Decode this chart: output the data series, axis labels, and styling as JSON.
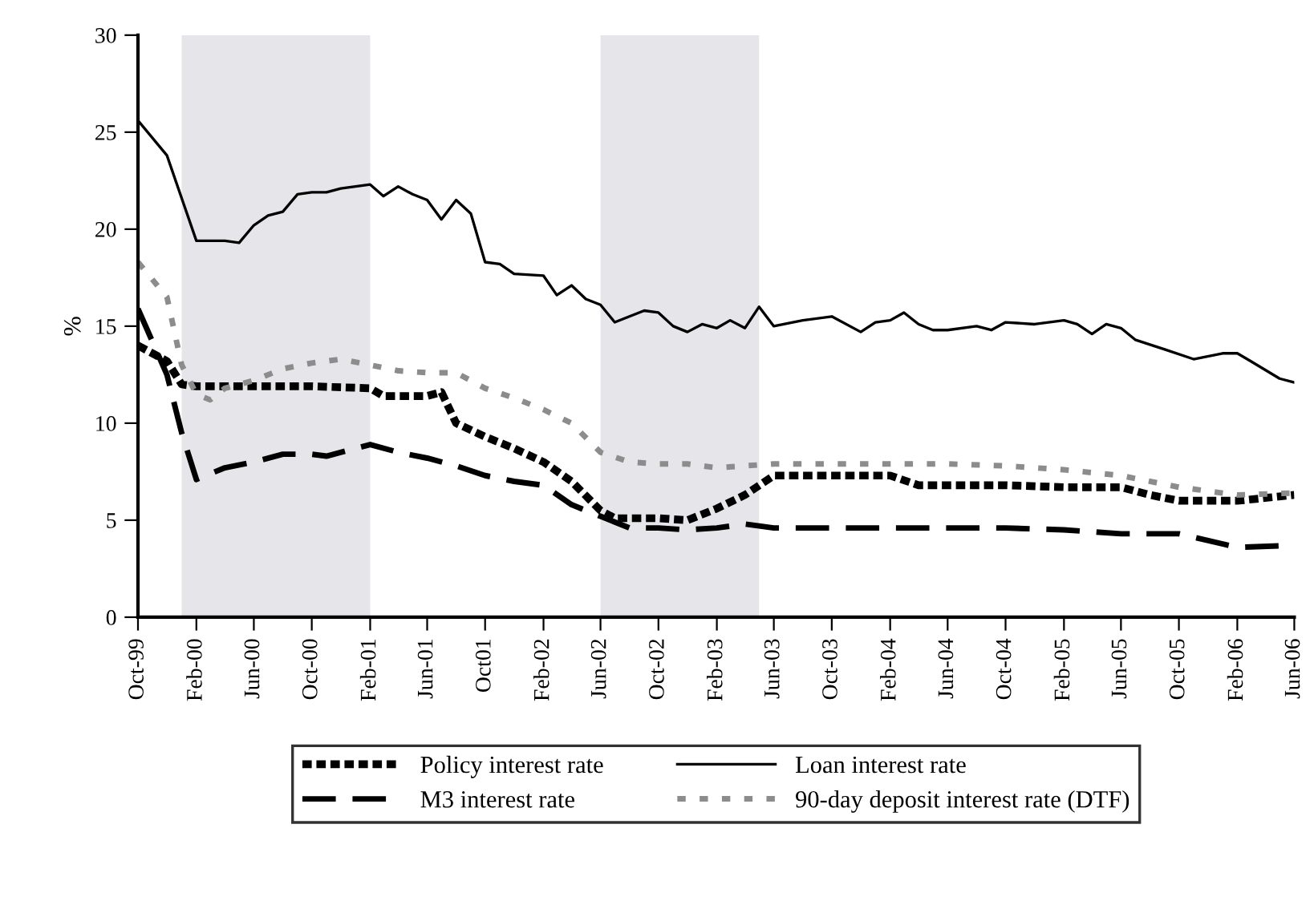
{
  "chart_data": {
    "type": "line",
    "ylabel": "%",
    "ylim": [
      0,
      30
    ],
    "yticks": [
      0,
      5,
      10,
      15,
      20,
      25,
      30
    ],
    "xlim": [
      "1999-10",
      "2006-06"
    ],
    "xticks": [
      {
        "value": "1999-10",
        "label": "Oct-99"
      },
      {
        "value": "2000-02",
        "label": "Feb-00"
      },
      {
        "value": "2000-06",
        "label": "Jun-00"
      },
      {
        "value": "2000-10",
        "label": "Oct-00"
      },
      {
        "value": "2001-02",
        "label": "Feb-01"
      },
      {
        "value": "2001-06",
        "label": "Jun-01"
      },
      {
        "value": "2001-10",
        "label": "Oct01"
      },
      {
        "value": "2002-02",
        "label": "Feb-02"
      },
      {
        "value": "2002-06",
        "label": "Jun-02"
      },
      {
        "value": "2002-10",
        "label": "Oct-02"
      },
      {
        "value": "2003-02",
        "label": "Feb-03"
      },
      {
        "value": "2003-06",
        "label": "Jun-03"
      },
      {
        "value": "2003-10",
        "label": "Oct-03"
      },
      {
        "value": "2004-02",
        "label": "Feb-04"
      },
      {
        "value": "2004-06",
        "label": "Jun-04"
      },
      {
        "value": "2004-10",
        "label": "Oct-04"
      },
      {
        "value": "2005-02",
        "label": "Feb-05"
      },
      {
        "value": "2005-06",
        "label": "Jun-05"
      },
      {
        "value": "2005-10",
        "label": "Oct-05"
      },
      {
        "value": "2006-02",
        "label": "Feb-06"
      },
      {
        "value": "2006-06",
        "label": "Jun-06"
      }
    ],
    "grid": false,
    "legend": "bottom",
    "bands": [
      {
        "axis": "x",
        "from": "2000-01",
        "to": "2001-02",
        "color": "#e6e6ea"
      },
      {
        "axis": "x",
        "from": "2002-06",
        "to": "2003-05",
        "color": "#e6e6ea"
      }
    ],
    "series": [
      {
        "name": "Policy interest rate",
        "color": "#000000",
        "line_style": "dotted",
        "x": [
          "1999-10",
          "1999-12",
          "2000-01",
          "2000-02",
          "2000-06",
          "2000-10",
          "2001-02",
          "2001-03",
          "2001-06",
          "2001-07",
          "2001-08",
          "2001-10",
          "2001-12",
          "2002-02",
          "2002-04",
          "2002-06",
          "2002-07",
          "2002-10",
          "2002-12",
          "2003-02",
          "2003-04",
          "2003-06",
          "2003-10",
          "2004-02",
          "2004-04",
          "2004-10",
          "2005-02",
          "2005-06",
          "2005-08",
          "2005-10",
          "2006-02",
          "2006-06"
        ],
        "values": [
          14,
          13.2,
          12.0,
          11.9,
          11.9,
          11.9,
          11.8,
          11.4,
          11.4,
          11.6,
          10.0,
          9.3,
          8.7,
          8.0,
          7.0,
          5.5,
          5.1,
          5.1,
          5.0,
          5.6,
          6.3,
          7.3,
          7.3,
          7.3,
          6.8,
          6.8,
          6.7,
          6.7,
          6.3,
          6.0,
          6.0,
          6.3
        ]
      },
      {
        "name": "M3 interest rate",
        "color": "#000000",
        "line_style": "dashed",
        "x": [
          "1999-10",
          "1999-12",
          "2000-01",
          "2000-02",
          "2000-04",
          "2000-06",
          "2000-08",
          "2000-10",
          "2000-11",
          "2001-02",
          "2001-04",
          "2001-06",
          "2001-08",
          "2001-10",
          "2001-12",
          "2002-02",
          "2002-04",
          "2002-06",
          "2002-08",
          "2002-10",
          "2002-12",
          "2003-02",
          "2003-04",
          "2003-06",
          "2003-10",
          "2004-02",
          "2004-06",
          "2004-10",
          "2005-02",
          "2005-06",
          "2005-10",
          "2006-02",
          "2006-06"
        ],
        "values": [
          15.9,
          12.5,
          9.5,
          7.1,
          7.7,
          8.0,
          8.4,
          8.4,
          8.3,
          8.9,
          8.5,
          8.2,
          7.8,
          7.3,
          7.0,
          6.8,
          5.8,
          5.2,
          4.6,
          4.6,
          4.5,
          4.6,
          4.8,
          4.6,
          4.6,
          4.6,
          4.6,
          4.6,
          4.5,
          4.3,
          4.3,
          3.6,
          3.7
        ]
      },
      {
        "name": "Loan interest rate",
        "color": "#000000",
        "line_style": "solid",
        "x": [
          "1999-10",
          "1999-12",
          "2000-02",
          "2000-04",
          "2000-05",
          "2000-06",
          "2000-07",
          "2000-08",
          "2000-09",
          "2000-10",
          "2000-11",
          "2000-12",
          "2001-02",
          "2001-03",
          "2001-04",
          "2001-05",
          "2001-06",
          "2001-07",
          "2001-08",
          "2001-09",
          "2001-10",
          "2001-11",
          "2001-12",
          "2002-02",
          "2002-03",
          "2002-04",
          "2002-05",
          "2002-06",
          "2002-07",
          "2002-08",
          "2002-09",
          "2002-10",
          "2002-11",
          "2002-12",
          "2003-01",
          "2003-02",
          "2003-03",
          "2003-04",
          "2003-05",
          "2003-06",
          "2003-08",
          "2003-10",
          "2003-12",
          "2004-01",
          "2004-02",
          "2004-03",
          "2004-04",
          "2004-05",
          "2004-06",
          "2004-08",
          "2004-09",
          "2004-10",
          "2004-12",
          "2005-02",
          "2005-03",
          "2005-04",
          "2005-05",
          "2005-06",
          "2005-07",
          "2005-09",
          "2005-11",
          "2006-01",
          "2006-02",
          "2006-03",
          "2006-05",
          "2006-06"
        ],
        "values": [
          25.6,
          23.8,
          19.4,
          19.4,
          19.3,
          20.2,
          20.7,
          20.9,
          21.8,
          21.9,
          21.9,
          22.1,
          22.3,
          21.7,
          22.2,
          21.8,
          21.5,
          20.5,
          21.5,
          20.8,
          18.3,
          18.2,
          17.7,
          17.6,
          16.6,
          17.1,
          16.4,
          16.1,
          15.2,
          15.5,
          15.8,
          15.7,
          15.0,
          14.7,
          15.1,
          14.9,
          15.3,
          14.9,
          16.0,
          15.0,
          15.3,
          15.5,
          14.7,
          15.2,
          15.3,
          15.7,
          15.1,
          14.8,
          14.8,
          15.0,
          14.8,
          15.2,
          15.1,
          15.3,
          15.1,
          14.6,
          15.1,
          14.9,
          14.3,
          13.8,
          13.3,
          13.6,
          13.6,
          13.2,
          12.3,
          12.1
        ]
      },
      {
        "name": "90-day deposit interest rate (DTF)",
        "color": "#8c8c8c",
        "line_style": "dashed",
        "x": [
          "1999-10",
          "1999-12",
          "2000-01",
          "2000-02",
          "2000-03",
          "2000-04",
          "2000-06",
          "2000-08",
          "2000-10",
          "2000-12",
          "2001-02",
          "2001-04",
          "2001-06",
          "2001-08",
          "2001-10",
          "2001-12",
          "2002-02",
          "2002-04",
          "2002-06",
          "2002-08",
          "2002-10",
          "2002-12",
          "2003-02",
          "2003-04",
          "2003-06",
          "2003-10",
          "2004-02",
          "2004-06",
          "2004-10",
          "2005-02",
          "2005-06",
          "2005-10",
          "2006-02",
          "2006-06"
        ],
        "values": [
          18.3,
          16.5,
          13.0,
          11.5,
          11.2,
          11.8,
          12.2,
          12.8,
          13.1,
          13.3,
          13.0,
          12.7,
          12.6,
          12.6,
          11.8,
          11.3,
          10.7,
          10.0,
          8.5,
          8.0,
          7.9,
          7.9,
          7.7,
          7.8,
          7.9,
          7.9,
          7.9,
          7.9,
          7.8,
          7.6,
          7.3,
          6.7,
          6.3,
          6.4
        ]
      }
    ]
  }
}
